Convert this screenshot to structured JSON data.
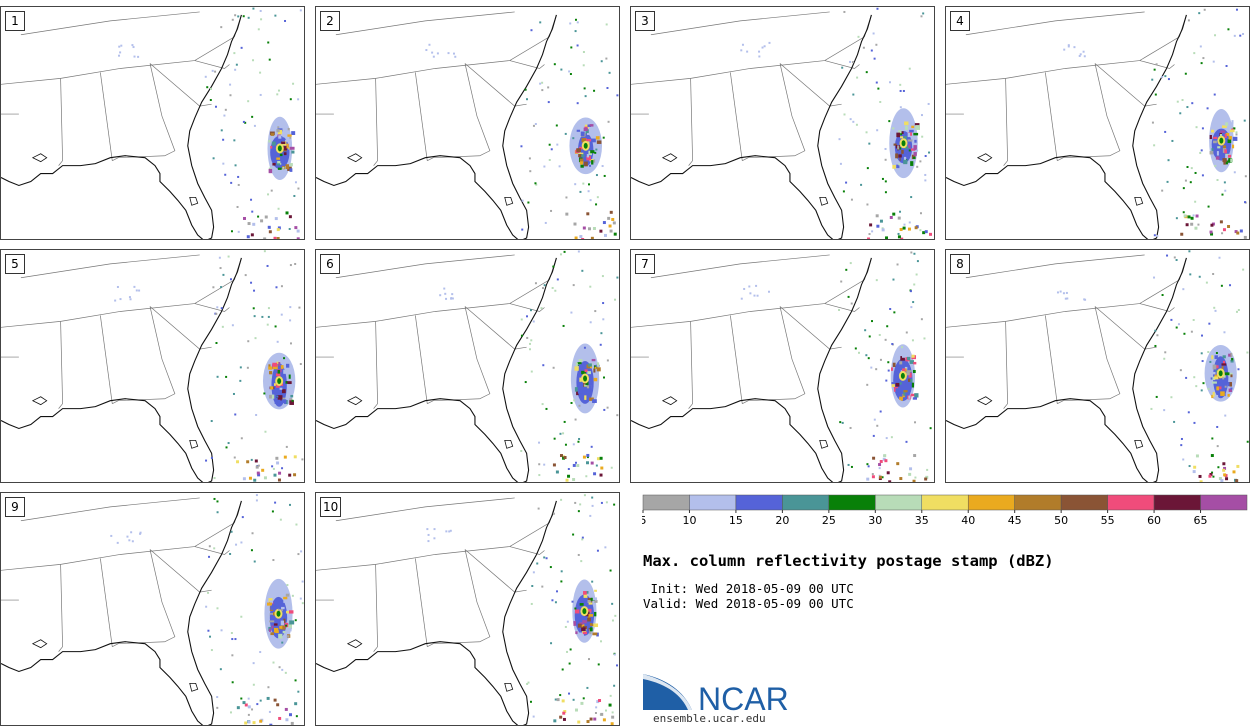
{
  "panels": [
    {
      "label": "1"
    },
    {
      "label": "2"
    },
    {
      "label": "3"
    },
    {
      "label": "4"
    },
    {
      "label": "5"
    },
    {
      "label": "6"
    },
    {
      "label": "7"
    },
    {
      "label": "8"
    },
    {
      "label": "9"
    },
    {
      "label": "10"
    }
  ],
  "legend": {
    "ticks": [
      "5",
      "10",
      "15",
      "20",
      "25",
      "30",
      "35",
      "40",
      "45",
      "50",
      "55",
      "60",
      "65"
    ],
    "colors": [
      "#a6a6a6",
      "#b3bfeb",
      "#5563d8",
      "#4a9597",
      "#088008",
      "#b8dcb8",
      "#f0de62",
      "#eaaa1f",
      "#b17c2a",
      "#8a5435",
      "#f04c7b",
      "#6b1637",
      "#a54ea5"
    ]
  },
  "title": "Max. column reflectivity postage stamp (dBZ)",
  "init_line": " Init: Wed 2018-05-09 00 UTC",
  "valid_line": "Valid: Wed 2018-05-09 00 UTC",
  "logo": {
    "text": "NCAR",
    "url": "ensemble.ucar.edu"
  }
}
